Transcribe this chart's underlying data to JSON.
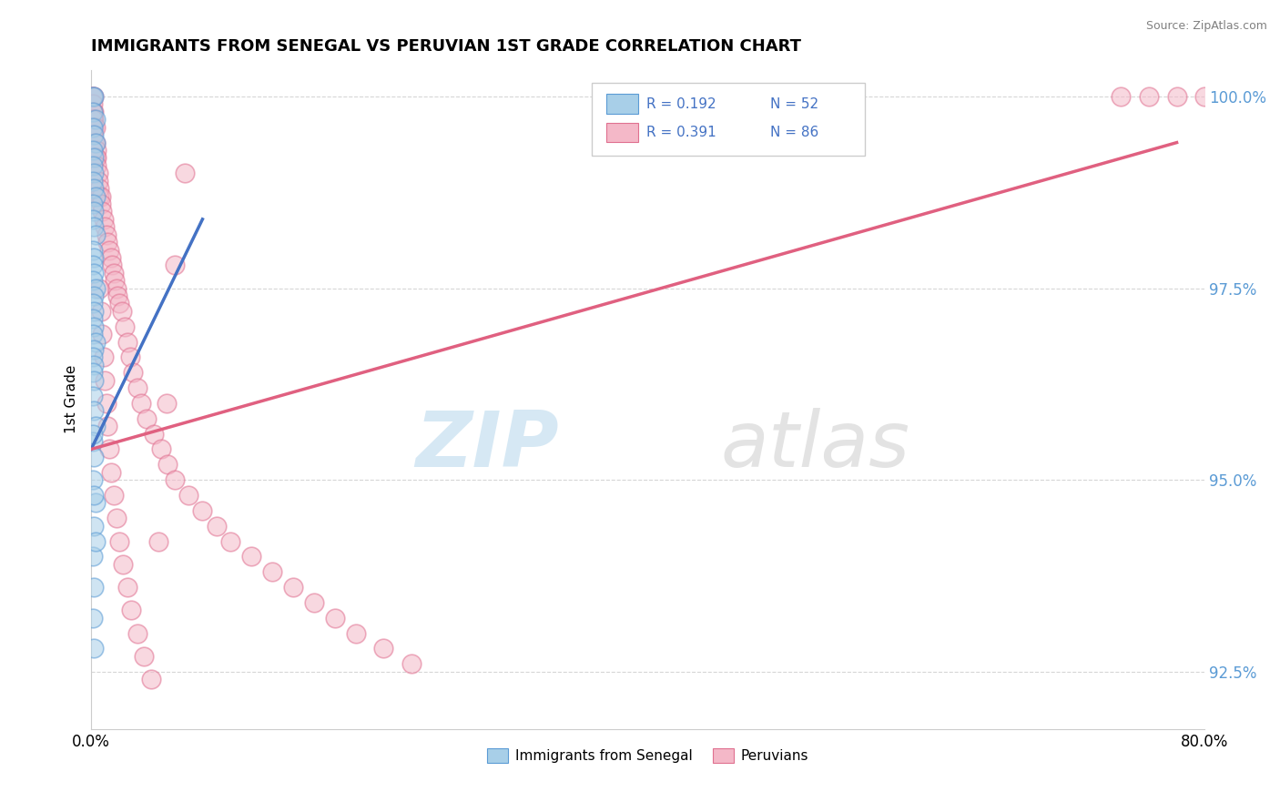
{
  "title": "IMMIGRANTS FROM SENEGAL VS PERUVIAN 1ST GRADE CORRELATION CHART",
  "source_text": "Source: ZipAtlas.com",
  "ylabel": "1st Grade",
  "xmin": 0.0,
  "xmax": 0.8,
  "ymin": 0.9175,
  "ymax": 1.0035,
  "yticks": [
    0.925,
    0.95,
    0.975,
    1.0
  ],
  "ytick_labels": [
    "92.5%",
    "95.0%",
    "97.5%",
    "100.0%"
  ],
  "xticks": [
    0.0,
    0.2,
    0.4,
    0.6,
    0.8
  ],
  "xtick_labels": [
    "0.0%",
    "",
    "",
    "",
    "80.0%"
  ],
  "legend_r1": "R = 0.192",
  "legend_n1": "N = 52",
  "legend_r2": "R = 0.391",
  "legend_n2": "N = 86",
  "color_blue": "#a8cfe8",
  "color_pink": "#f4b8c8",
  "color_blue_edge": "#5b9bd5",
  "color_pink_edge": "#e07090",
  "color_blue_line": "#4472c4",
  "color_pink_line": "#e06080",
  "senegal_x": [
    0.001,
    0.002,
    0.001,
    0.003,
    0.001,
    0.002,
    0.003,
    0.001,
    0.002,
    0.001,
    0.002,
    0.001,
    0.002,
    0.003,
    0.001,
    0.002,
    0.001,
    0.002,
    0.003,
    0.001,
    0.002,
    0.001,
    0.002,
    0.001,
    0.003,
    0.002,
    0.001,
    0.002,
    0.001,
    0.002,
    0.001,
    0.003,
    0.002,
    0.001,
    0.002,
    0.001,
    0.002,
    0.001,
    0.002,
    0.003,
    0.001,
    0.002,
    0.001,
    0.003,
    0.002,
    0.001,
    0.002,
    0.001,
    0.002,
    0.001,
    0.002,
    0.003
  ],
  "senegal_y": [
    1.0,
    1.0,
    0.998,
    0.997,
    0.996,
    0.995,
    0.994,
    0.993,
    0.992,
    0.991,
    0.99,
    0.989,
    0.988,
    0.987,
    0.986,
    0.985,
    0.984,
    0.983,
    0.982,
    0.98,
    0.979,
    0.978,
    0.977,
    0.976,
    0.975,
    0.974,
    0.973,
    0.972,
    0.971,
    0.97,
    0.969,
    0.968,
    0.967,
    0.966,
    0.965,
    0.964,
    0.963,
    0.961,
    0.959,
    0.957,
    0.955,
    0.953,
    0.95,
    0.947,
    0.944,
    0.94,
    0.936,
    0.932,
    0.928,
    0.956,
    0.948,
    0.942
  ],
  "peruvian_x": [
    0.001,
    0.001,
    0.002,
    0.001,
    0.002,
    0.001,
    0.002,
    0.001,
    0.002,
    0.003,
    0.001,
    0.002,
    0.003,
    0.004,
    0.003,
    0.004,
    0.004,
    0.005,
    0.005,
    0.006,
    0.006,
    0.007,
    0.007,
    0.008,
    0.009,
    0.01,
    0.011,
    0.012,
    0.013,
    0.014,
    0.015,
    0.016,
    0.017,
    0.018,
    0.019,
    0.02,
    0.022,
    0.024,
    0.026,
    0.028,
    0.03,
    0.033,
    0.036,
    0.04,
    0.045,
    0.05,
    0.055,
    0.06,
    0.07,
    0.08,
    0.09,
    0.1,
    0.115,
    0.13,
    0.145,
    0.16,
    0.175,
    0.19,
    0.21,
    0.23,
    0.006,
    0.007,
    0.008,
    0.009,
    0.01,
    0.011,
    0.012,
    0.013,
    0.014,
    0.016,
    0.018,
    0.02,
    0.023,
    0.026,
    0.029,
    0.033,
    0.038,
    0.043,
    0.048,
    0.054,
    0.06,
    0.067,
    0.74,
    0.76,
    0.78,
    0.8
  ],
  "peruvian_y": [
    1.0,
    1.0,
    1.0,
    0.999,
    0.998,
    0.998,
    0.997,
    0.997,
    0.996,
    0.996,
    0.995,
    0.994,
    0.994,
    0.993,
    0.992,
    0.992,
    0.991,
    0.99,
    0.989,
    0.988,
    0.987,
    0.987,
    0.986,
    0.985,
    0.984,
    0.983,
    0.982,
    0.981,
    0.98,
    0.979,
    0.978,
    0.977,
    0.976,
    0.975,
    0.974,
    0.973,
    0.972,
    0.97,
    0.968,
    0.966,
    0.964,
    0.962,
    0.96,
    0.958,
    0.956,
    0.954,
    0.952,
    0.95,
    0.948,
    0.946,
    0.944,
    0.942,
    0.94,
    0.938,
    0.936,
    0.934,
    0.932,
    0.93,
    0.928,
    0.926,
    0.975,
    0.972,
    0.969,
    0.966,
    0.963,
    0.96,
    0.957,
    0.954,
    0.951,
    0.948,
    0.945,
    0.942,
    0.939,
    0.936,
    0.933,
    0.93,
    0.927,
    0.924,
    0.942,
    0.96,
    0.978,
    0.99,
    1.0,
    1.0,
    1.0,
    1.0
  ],
  "blue_line_x": [
    0.0,
    0.08
  ],
  "blue_line_y": [
    0.954,
    0.984
  ],
  "pink_line_x": [
    0.0,
    0.78
  ],
  "pink_line_y": [
    0.954,
    0.994
  ]
}
